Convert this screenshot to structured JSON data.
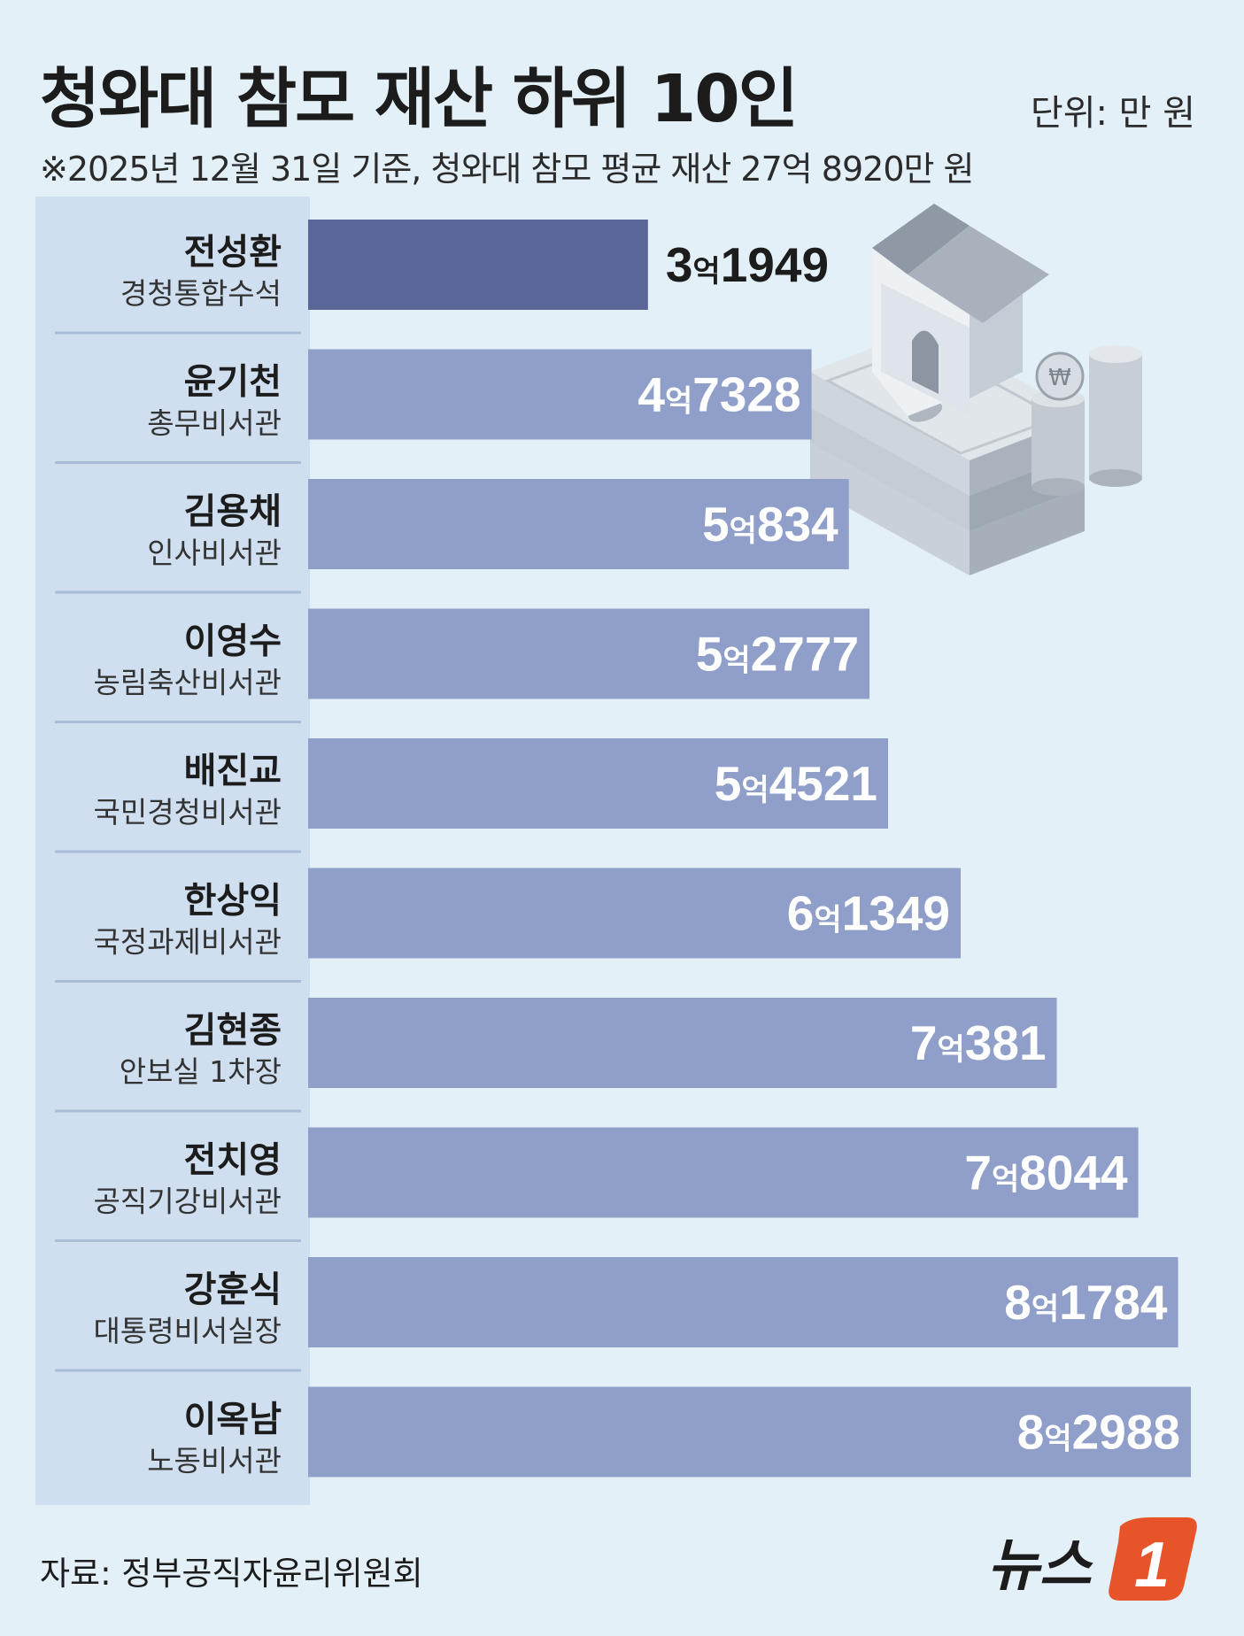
{
  "header": {
    "title": "청와대 참모 재산 하위 10인",
    "unit": "단위: 만 원",
    "subtitle": "※2025년 12월 31일 기준, 청와대 참모 평균 재산 27억 8920만 원"
  },
  "footer": {
    "source": "자료: 정부공직자윤리위원회",
    "logo_text": "뉴스",
    "logo_badge": "1"
  },
  "colors": {
    "bar": "#8f9fc9",
    "bar_highlight": "#5a6598",
    "label_on_bar": "#ffffff",
    "label_outside": "#1c1c1c"
  },
  "chart_data": {
    "type": "bar",
    "orientation": "horizontal",
    "title": "청와대 참모 재산 하위 10인",
    "unit": "만 원",
    "categories": [
      "전성환",
      "윤기천",
      "김용채",
      "이영수",
      "배진교",
      "한상익",
      "김현종",
      "전치영",
      "강훈식",
      "이옥남"
    ],
    "roles": [
      "경청통합수석",
      "총무비서관",
      "인사비서관",
      "농림축산비서관",
      "국민경청비서관",
      "국정과제비서관",
      "안보실 1차장",
      "공직기강비서관",
      "대통령비서실장",
      "노동비서관"
    ],
    "values": [
      31949,
      47328,
      50834,
      52777,
      54521,
      61349,
      70381,
      78044,
      81784,
      82988
    ],
    "value_labels": [
      {
        "eok": "3",
        "unit": "억",
        "man": "1949"
      },
      {
        "eok": "4",
        "unit": "억",
        "man": "7328"
      },
      {
        "eok": "5",
        "unit": "억",
        "man": "834"
      },
      {
        "eok": "5",
        "unit": "억",
        "man": "2777"
      },
      {
        "eok": "5",
        "unit": "억",
        "man": "4521"
      },
      {
        "eok": "6",
        "unit": "억",
        "man": "1349"
      },
      {
        "eok": "7",
        "unit": "억",
        "man": "381"
      },
      {
        "eok": "7",
        "unit": "억",
        "man": "8044"
      },
      {
        "eok": "8",
        "unit": "억",
        "man": "1784"
      },
      {
        "eok": "8",
        "unit": "억",
        "man": "2988"
      }
    ],
    "highlight_index": 0,
    "grid": false,
    "legend": "none"
  }
}
